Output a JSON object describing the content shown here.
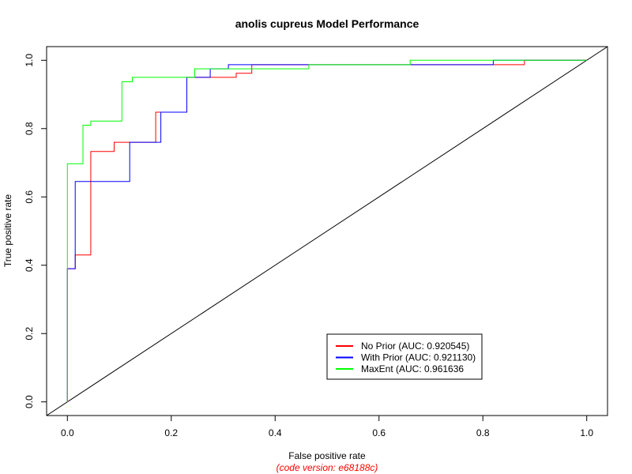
{
  "chart_data": {
    "type": "line",
    "title": "anolis cupreus Model Performance",
    "xlabel": "False positive rate",
    "ylabel": "True positive rate",
    "caption": "(code version: e68188c)",
    "xlim": [
      -0.04,
      1.04
    ],
    "ylim": [
      -0.04,
      1.04
    ],
    "xticks": [
      0.0,
      0.2,
      0.4,
      0.6,
      0.8,
      1.0
    ],
    "yticks": [
      0.0,
      0.2,
      0.4,
      0.6,
      0.8,
      1.0
    ],
    "xtick_labels": [
      "0.0",
      "0.2",
      "0.4",
      "0.6",
      "0.8",
      "1.0"
    ],
    "ytick_labels": [
      "0.0",
      "0.2",
      "0.4",
      "0.6",
      "0.8",
      "1.0"
    ],
    "grid": false,
    "legend_position": "bottom-right",
    "reference_line": {
      "x": [
        -0.04,
        1.04
      ],
      "y": [
        -0.04,
        1.04
      ],
      "color": "#000000"
    },
    "series": [
      {
        "name": "No Prior (AUC: 0.920545)",
        "color": "#ff0000",
        "x": [
          0.0,
          0.0,
          0.015,
          0.015,
          0.045,
          0.045,
          0.09,
          0.09,
          0.12,
          0.12,
          0.17,
          0.17,
          0.23,
          0.23,
          0.28,
          0.28,
          0.325,
          0.325,
          0.355,
          0.355,
          0.88,
          0.88,
          1.0
        ],
        "y": [
          0.0,
          0.39,
          0.39,
          0.43,
          0.43,
          0.733,
          0.733,
          0.76,
          0.76,
          0.76,
          0.76,
          0.848,
          0.848,
          0.95,
          0.95,
          0.95,
          0.95,
          0.962,
          0.962,
          0.987,
          0.987,
          1.0,
          1.0
        ]
      },
      {
        "name": "With Prior (AUC: 0.921130)",
        "color": "#0000ff",
        "x": [
          0.0,
          0.0,
          0.015,
          0.015,
          0.12,
          0.12,
          0.18,
          0.18,
          0.23,
          0.23,
          0.275,
          0.275,
          0.31,
          0.31,
          0.82,
          0.82,
          1.0
        ],
        "y": [
          0.0,
          0.39,
          0.39,
          0.645,
          0.645,
          0.76,
          0.76,
          0.848,
          0.848,
          0.95,
          0.95,
          0.975,
          0.975,
          0.987,
          0.987,
          1.0,
          1.0
        ]
      },
      {
        "name": "MaxEnt (AUC: 0.961636",
        "color": "#00ff00",
        "x": [
          0.0,
          0.0,
          0.03,
          0.03,
          0.045,
          0.045,
          0.105,
          0.105,
          0.125,
          0.125,
          0.245,
          0.245,
          0.465,
          0.465,
          0.66,
          0.66,
          1.0
        ],
        "y": [
          0.0,
          0.697,
          0.697,
          0.81,
          0.81,
          0.822,
          0.822,
          0.937,
          0.937,
          0.95,
          0.95,
          0.975,
          0.975,
          0.987,
          0.987,
          1.0,
          1.0
        ]
      }
    ]
  }
}
